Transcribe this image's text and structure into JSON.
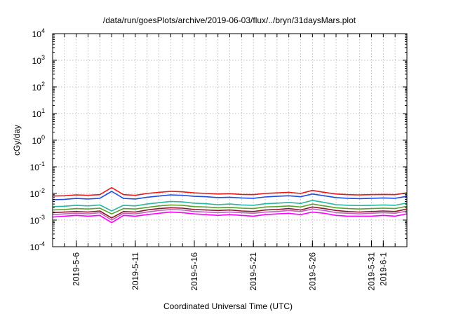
{
  "chart_data": {
    "type": "line",
    "title": "/data/run/goesPlots/archive/2019-06-03/flux/../bryn/31daysMars.plot",
    "xlabel": "Coordinated Universal Time (UTC)",
    "ylabel": "cGy/day",
    "y_scale": "log",
    "ylim": [
      0.0001,
      10000
    ],
    "xlim": [
      "2019-05-04",
      "2019-06-03"
    ],
    "grid": true,
    "y_ticks": [
      {
        "base": "10",
        "exp": "-4"
      },
      {
        "base": "10",
        "exp": "-3"
      },
      {
        "base": "10",
        "exp": "-2"
      },
      {
        "base": "10",
        "exp": "-1"
      },
      {
        "base": "10",
        "exp": "0"
      },
      {
        "base": "10",
        "exp": "1"
      },
      {
        "base": "10",
        "exp": "2"
      },
      {
        "base": "10",
        "exp": "3"
      },
      {
        "base": "10",
        "exp": "4"
      }
    ],
    "x_ticks": [
      "2019-5-6",
      "2019-5-11",
      "2019-5-16",
      "2019-5-21",
      "2019-5-26",
      "2019-5-31",
      "2019-6-1"
    ],
    "x": [
      "2019-05-04",
      "2019-05-05",
      "2019-05-06",
      "2019-05-07",
      "2019-05-08",
      "2019-05-09",
      "2019-05-10",
      "2019-05-11",
      "2019-05-12",
      "2019-05-13",
      "2019-05-14",
      "2019-05-15",
      "2019-05-16",
      "2019-05-17",
      "2019-05-18",
      "2019-05-19",
      "2019-05-20",
      "2019-05-21",
      "2019-05-22",
      "2019-05-23",
      "2019-05-24",
      "2019-05-25",
      "2019-05-26",
      "2019-05-27",
      "2019-05-28",
      "2019-05-29",
      "2019-05-30",
      "2019-05-31",
      "2019-06-01",
      "2019-06-02",
      "2019-06-03"
    ],
    "series": [
      {
        "color": "#e41a1c",
        "values": [
          0.008,
          0.0082,
          0.0088,
          0.0085,
          0.009,
          0.0165,
          0.009,
          0.0085,
          0.01,
          0.011,
          0.012,
          0.0115,
          0.0105,
          0.01,
          0.0095,
          0.0098,
          0.0092,
          0.009,
          0.01,
          0.0105,
          0.011,
          0.01,
          0.013,
          0.011,
          0.0095,
          0.009,
          0.0088,
          0.009,
          0.0092,
          0.009,
          0.0105
        ]
      },
      {
        "color": "#1f4de0",
        "values": [
          0.0058,
          0.006,
          0.0065,
          0.0062,
          0.0066,
          0.012,
          0.0065,
          0.0062,
          0.0072,
          0.008,
          0.0088,
          0.0085,
          0.0078,
          0.0075,
          0.007,
          0.0072,
          0.0068,
          0.0066,
          0.0074,
          0.0078,
          0.0082,
          0.0075,
          0.0095,
          0.0082,
          0.007,
          0.0066,
          0.0064,
          0.0066,
          0.0068,
          0.0066,
          0.0078
        ]
      },
      {
        "color": "#2ab5a0",
        "values": [
          0.0032,
          0.0033,
          0.0036,
          0.0034,
          0.0037,
          0.0022,
          0.0036,
          0.0034,
          0.004,
          0.0045,
          0.005,
          0.0048,
          0.0043,
          0.0041,
          0.0038,
          0.004,
          0.0037,
          0.0036,
          0.0041,
          0.0043,
          0.0046,
          0.0042,
          0.0055,
          0.0046,
          0.0038,
          0.0036,
          0.0035,
          0.0036,
          0.0037,
          0.0036,
          0.0044
        ]
      },
      {
        "color": "#5aa02c",
        "values": [
          0.0024,
          0.0025,
          0.0027,
          0.0026,
          0.0028,
          0.0017,
          0.0027,
          0.0026,
          0.003,
          0.0034,
          0.0037,
          0.0036,
          0.0032,
          0.0031,
          0.0029,
          0.003,
          0.0028,
          0.0027,
          0.0031,
          0.0032,
          0.0034,
          0.0031,
          0.004,
          0.0034,
          0.0029,
          0.0027,
          0.0026,
          0.0027,
          0.0028,
          0.0027,
          0.0033
        ]
      },
      {
        "color": "#8b1a2b",
        "values": [
          0.0019,
          0.002,
          0.0021,
          0.002,
          0.0022,
          0.0012,
          0.0021,
          0.002,
          0.0024,
          0.0027,
          0.0029,
          0.0028,
          0.0025,
          0.0024,
          0.0023,
          0.0024,
          0.0022,
          0.0021,
          0.0024,
          0.0025,
          0.0027,
          0.0024,
          0.0031,
          0.0027,
          0.0023,
          0.0021,
          0.002,
          0.0021,
          0.0022,
          0.0021,
          0.0026
        ]
      },
      {
        "color": "#c060c0",
        "values": [
          0.0016,
          0.0017,
          0.0018,
          0.0017,
          0.0019,
          0.001,
          0.0018,
          0.0017,
          0.002,
          0.0023,
          0.0025,
          0.0024,
          0.0021,
          0.002,
          0.0019,
          0.002,
          0.0019,
          0.0018,
          0.002,
          0.0021,
          0.0023,
          0.0021,
          0.0026,
          0.0023,
          0.0019,
          0.0018,
          0.0017,
          0.0018,
          0.0019,
          0.0018,
          0.0022
        ]
      },
      {
        "color": "#ff00ff",
        "values": [
          0.0013,
          0.0014,
          0.0015,
          0.0014,
          0.0015,
          0.0008,
          0.0015,
          0.0014,
          0.0016,
          0.0018,
          0.002,
          0.0019,
          0.0017,
          0.0016,
          0.0015,
          0.0016,
          0.0015,
          0.0014,
          0.0016,
          0.0017,
          0.0018,
          0.0016,
          0.002,
          0.0018,
          0.0015,
          0.0014,
          0.0014,
          0.0014,
          0.0015,
          0.0014,
          0.0017
        ]
      }
    ]
  }
}
